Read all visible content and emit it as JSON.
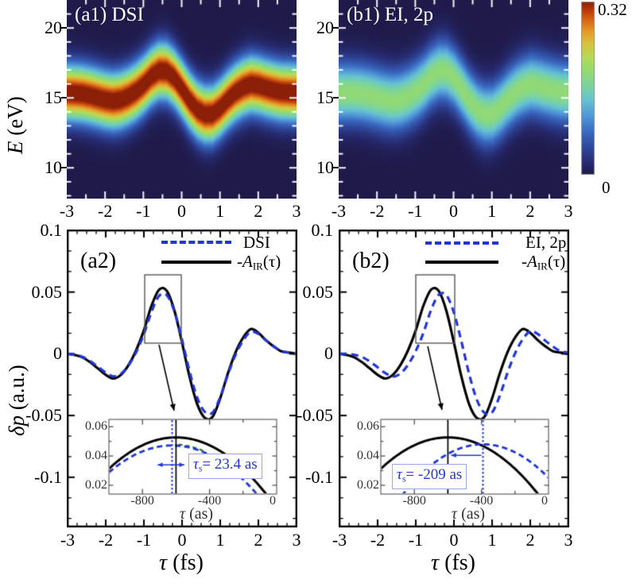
{
  "text": {
    "heatmap_y_var": "E",
    "heatmap_y_unit": " (eV)",
    "lp_y_var": "δp",
    "lp_y_unit": " (a.u.)",
    "x_var": "τ",
    "x_unit": " (fs)",
    "inset_x_var": "τ",
    "inset_x_unit": " (as)",
    "colorbar_max": "0.32",
    "colorbar_min": "0",
    "legend_solid_pre": "-",
    "legend_solid_var": "A",
    "legend_solid_sub": "IR",
    "legend_solid_post": "(τ)",
    "legend_a2_dashed": "DSI",
    "legend_b2_dashed": "EI, 2p",
    "ann_a2_var": "τ",
    "ann_a2_sub": "s",
    "ann_a2_rest": "= 23.4 as",
    "ann_b2_var": "τ",
    "ann_b2_sub": "s",
    "ann_b2_rest": "= -209 as"
  },
  "ticks": {
    "heatmap_x_labels": [
      "-3",
      "-2",
      "-1",
      "0",
      "1",
      "2",
      "3"
    ],
    "heatmap_x_values": [
      -3,
      -2,
      -1,
      0,
      1,
      2,
      3
    ],
    "heatmap_y_labels": [
      "20",
      "15",
      "10"
    ],
    "heatmap_y_values": [
      20,
      15,
      10
    ],
    "lp_x_labels": [
      "-3",
      "-2",
      "-1",
      "0",
      "1",
      "2",
      "3"
    ],
    "lp_x_values": [
      -3,
      -2,
      -1,
      0,
      1,
      2,
      3
    ],
    "lp_y_labels": [
      "0.1",
      "0.05",
      "0",
      "-0.05",
      "-0.1"
    ],
    "lp_y_values": [
      0.1,
      0.05,
      0,
      -0.05,
      -0.1
    ],
    "inset_x_labels": [
      "-800",
      "-400",
      "0"
    ],
    "inset_x_values": [
      -800,
      -400,
      0
    ],
    "inset_y_labels": [
      "0.06",
      "0.04",
      "0.02"
    ],
    "inset_y_values": [
      0.06,
      0.04,
      0.02
    ]
  },
  "colors": {
    "curve_blue": "#2136d4",
    "curve_black": "#000000",
    "annotation_blue": "#2136d4",
    "annotation_box_border": "#9aa8e6",
    "zoom_box_gray": "#555555",
    "inset_border_gray": "#777777",
    "green_dash": "#2a7a1e",
    "heatmap_tick_white": "#ffffff"
  },
  "chart_data": {
    "type": "composite",
    "waveform": {
      "x_fs": [
        -3,
        -2.8,
        -2.6,
        -2.4,
        -2.2,
        -2,
        -1.8,
        -1.6,
        -1.4,
        -1.2,
        -1,
        -0.8,
        -0.6,
        -0.4,
        -0.2,
        0,
        0.2,
        0.4,
        0.6,
        0.8,
        1,
        1.2,
        1.4,
        1.6,
        1.8,
        2,
        2.2,
        2.4,
        2.6,
        2.8,
        3
      ],
      "neg_A_IR": [
        0,
        -0.001,
        -0.003,
        -0.007,
        -0.012,
        -0.017,
        -0.02,
        -0.017,
        -0.009,
        0.003,
        0.019,
        0.039,
        0.052,
        0.051,
        0.035,
        0.009,
        -0.019,
        -0.041,
        -0.052,
        -0.051,
        -0.036,
        -0.016,
        0.001,
        0.013,
        0.02,
        0.017,
        0.011,
        0.006,
        0.002,
        0.001,
        0
      ]
    },
    "heatmaps": [
      {
        "id": "a1",
        "type": "heatmap",
        "title": "(a1) DSI",
        "x_range_fs": [
          -3,
          3
        ],
        "y_range_eV": [
          7.8,
          22.0
        ],
        "y_ticks": [
          10,
          15,
          20
        ],
        "band_center_eV": 15.4,
        "band_center_scale": 30,
        "band_sigma_eV": 1.35,
        "peak_intensity": 0.34,
        "shift_fs": 0
      },
      {
        "id": "b1",
        "type": "heatmap",
        "title": "(b1) EI, 2p",
        "x_range_fs": [
          -3,
          3
        ],
        "y_range_eV": [
          7.8,
          22.0
        ],
        "y_ticks": [
          10,
          15,
          20
        ],
        "band_center_eV": 15.4,
        "band_center_scale": 30,
        "band_sigma_eV": 1.5,
        "peak_intensity": 0.19,
        "shift_fs": 0.209
      }
    ],
    "line_panels": [
      {
        "id": "a2",
        "type": "line",
        "title": "(a2)",
        "xlim": [
          -3,
          3
        ],
        "ylim": [
          -0.14,
          0.1
        ],
        "series": [
          {
            "name": "-A_IR(τ)",
            "style": "solid",
            "color": "#000000",
            "amplitude": 1.0,
            "shift_fs": 0
          },
          {
            "name": "DSI",
            "style": "dashed",
            "color": "#2136d4",
            "amplitude": 0.93,
            "shift_fs": 0.0234
          }
        ],
        "inset": {
          "x_range_as": [
            -1000,
            0
          ],
          "y_range": [
            0.014,
            0.065
          ],
          "black_peak": {
            "t_as": -600,
            "v": 0.0527,
            "curvature": 1.34e-07
          },
          "blue_peak": {
            "t_as": -623.4,
            "v": 0.0472,
            "curvature": 1.3e-07
          },
          "green_segment_t_as": [
            -585,
            -435
          ],
          "delay_as": 23.4
        }
      },
      {
        "id": "b2",
        "type": "line",
        "title": "(b2)",
        "xlim": [
          -3,
          3
        ],
        "ylim": [
          -0.14,
          0.1
        ],
        "series": [
          {
            "name": "-A_IR(τ)",
            "style": "solid",
            "color": "#000000",
            "amplitude": 1.0,
            "shift_fs": 0
          },
          {
            "name": "EI, 2p",
            "style": "dashed",
            "color": "#2136d4",
            "amplitude": 0.93,
            "shift_fs": 0.209
          }
        ],
        "inset": {
          "x_range_as": [
            -1000,
            0
          ],
          "y_range": [
            0.014,
            0.065
          ],
          "black_peak": {
            "t_as": -600,
            "v": 0.0527,
            "curvature": 1.34e-07
          },
          "blue_peak": {
            "t_as": -391,
            "v": 0.048,
            "curvature": 1.5e-07
          },
          "delay_as": -209
        }
      }
    ],
    "colorbar": {
      "min": 0,
      "max": 0.32,
      "stops": [
        [
          0.0,
          "#1f1a4a"
        ],
        [
          0.07,
          "#262a6e"
        ],
        [
          0.15,
          "#2f4496"
        ],
        [
          0.25,
          "#3a68c0"
        ],
        [
          0.35,
          "#529bd8"
        ],
        [
          0.44,
          "#68c4cf"
        ],
        [
          0.52,
          "#7cd49b"
        ],
        [
          0.6,
          "#93da72"
        ],
        [
          0.68,
          "#b5da58"
        ],
        [
          0.76,
          "#d6c23e"
        ],
        [
          0.83,
          "#e39a28"
        ],
        [
          0.89,
          "#d86a16"
        ],
        [
          0.94,
          "#c2410e"
        ],
        [
          1.0,
          "#8c1f08"
        ]
      ]
    }
  }
}
